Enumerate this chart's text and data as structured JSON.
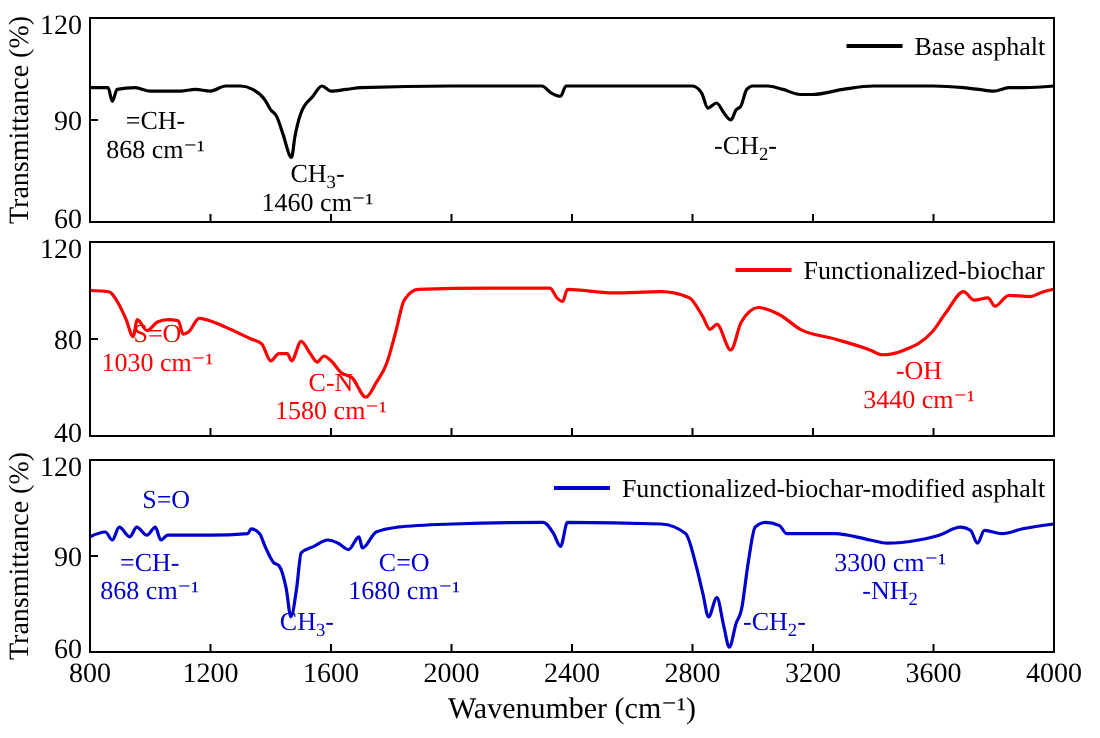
{
  "chart_data": [
    {
      "type": "line",
      "ylabel": "Transmittance (%)",
      "xlim": [
        800,
        4000
      ],
      "xticks": [
        800,
        1200,
        1600,
        2000,
        2400,
        2800,
        3200,
        3600,
        4000
      ],
      "ylim": [
        60,
        120
      ],
      "yticks": [
        60,
        90,
        120
      ],
      "tick_labels": "y",
      "legend": "top right",
      "series": [
        {
          "name": "Base asphalt",
          "color": "#000000",
          "x": [
            800,
            860,
            874,
            890,
            950,
            1000,
            1100,
            1150,
            1200,
            1250,
            1300,
            1340,
            1380,
            1400,
            1420,
            1440,
            1469,
            1480,
            1500,
            1540,
            1570,
            1600,
            1650,
            1700,
            2000,
            2300,
            2330,
            2362,
            2380,
            2500,
            2800,
            2830,
            2851,
            2880,
            2905,
            2927,
            2945,
            2960,
            2980,
            3000,
            3050,
            3100,
            3158,
            3200,
            3300,
            3400,
            3600,
            3700,
            3750,
            3800,
            3850,
            3900,
            4000
          ],
          "values": [
            99.5,
            99.5,
            95.5,
            99,
            99.5,
            98.5,
            98.5,
            99,
            98.5,
            100,
            100,
            99,
            96,
            93,
            91,
            86,
            79,
            85,
            92,
            97,
            100,
            98.5,
            99,
            99.5,
            100,
            100,
            98,
            97,
            100,
            100,
            100,
            98,
            93.5,
            95,
            92,
            90,
            93,
            94,
            99,
            100,
            100,
            99,
            97.5,
            97.5,
            99,
            100,
            100,
            99.5,
            99,
            98.5,
            99.5,
            99.5,
            100
          ]
        }
      ],
      "annotations": [
        "=CH-\n868 cm⁻¹",
        "CH$_{3}$-\n1460 cm⁻¹",
        "-CH$_{2}$-"
      ]
    },
    {
      "type": "line",
      "xlim": [
        800,
        4000
      ],
      "xticks": [
        800,
        1200,
        1600,
        2000,
        2400,
        2800,
        3200,
        3600,
        4000
      ],
      "ylim": [
        40,
        120
      ],
      "yticks": [
        40,
        80,
        120
      ],
      "tick_labels": "y",
      "legend": "top right",
      "series": [
        {
          "name": "Functionalized-biochar",
          "color": "#ff0000",
          "x": [
            800,
            862,
            897,
            920,
            943,
            957,
            989,
            1024,
            1058,
            1093,
            1109,
            1128,
            1162,
            1220,
            1266,
            1335,
            1370,
            1400,
            1427,
            1455,
            1469,
            1501,
            1531,
            1554,
            1577,
            1600,
            1635,
            1670,
            1716,
            1750,
            1785,
            1815,
            1843,
            1889,
            2120,
            2327,
            2350,
            2369,
            2385,
            2535,
            2696,
            2789,
            2835,
            2858,
            2881,
            2927,
            2962,
            3019,
            3089,
            3158,
            3273,
            3389,
            3430,
            3504,
            3596,
            3642,
            3700,
            3735,
            3781,
            3804,
            3850,
            3920,
            3965,
            4000
          ],
          "values": [
            100,
            99.5,
            94,
            88,
            81,
            88,
            83.5,
            87,
            88,
            87.5,
            82,
            83,
            88.5,
            86.5,
            84,
            80,
            78,
            71,
            74,
            74,
            71,
            79,
            74,
            70.5,
            73,
            71,
            66,
            64,
            56,
            62,
            70,
            83,
            96,
            100.5,
            101,
            101,
            97,
            95.5,
            100.5,
            99,
            99.5,
            97,
            89,
            84,
            86,
            75.5,
            87,
            93,
            90,
            84,
            80,
            75.5,
            73.5,
            75.5,
            83,
            91,
            99.5,
            96,
            97,
            93.5,
            98,
            97.5,
            99.5,
            100.5
          ]
        }
      ],
      "annotations": [
        "S=O\n1030 cm⁻¹",
        "C-N\n1580 cm⁻¹",
        "-OH\n3440 cm⁻¹"
      ]
    },
    {
      "type": "line",
      "xlabel": "Wavenumber (cm⁻¹)",
      "ylabel": "Transmittance (%)",
      "xlim": [
        800,
        4000
      ],
      "xticks": [
        800,
        1200,
        1600,
        2000,
        2400,
        2800,
        3200,
        3600,
        4000
      ],
      "ylim": [
        60,
        120
      ],
      "yticks": [
        60,
        90,
        120
      ],
      "legend": "top right",
      "series": [
        {
          "name": "Functionalized-biochar-modified asphalt",
          "color": "#0000cc",
          "x": [
            800,
            851,
            874,
            897,
            932,
            955,
            989,
            1017,
            1035,
            1058,
            1197,
            1324,
            1335,
            1363,
            1381,
            1409,
            1427,
            1451,
            1467,
            1486,
            1501,
            1543,
            1589,
            1624,
            1658,
            1693,
            1704,
            1750,
            1820,
            2004,
            2304,
            2339,
            2362,
            2385,
            2696,
            2777,
            2812,
            2835,
            2853,
            2881,
            2904,
            2922,
            2945,
            2962,
            2985,
            3008,
            3042,
            3089,
            3112,
            3273,
            3389,
            3446,
            3550,
            3619,
            3689,
            3723,
            3746,
            3769,
            3827,
            3896,
            4000
          ],
          "values": [
            96,
            97.5,
            95,
            99,
            96,
            99,
            96.5,
            99,
            95,
            96.5,
            96.5,
            97,
            98.5,
            97,
            93,
            88,
            87,
            80,
            71,
            80,
            91,
            93,
            95,
            94,
            92,
            96,
            92.5,
            97.5,
            99,
            100,
            100.5,
            97,
            93,
            100.5,
            100,
            97,
            87,
            78,
            71,
            77,
            68,
            61.5,
            69,
            73,
            88,
            99,
            100.5,
            99.5,
            97,
            97,
            95,
            94,
            95,
            96.5,
            99,
            98,
            94,
            98,
            97,
            98.5,
            100
          ]
        }
      ],
      "annotations": [
        "S=O",
        "=CH-\n868 cm⁻¹",
        "C=O\n1680 cm⁻¹",
        "CH$_{3}$-",
        "-CH$_{2}$-",
        "3300 cm⁻¹\n-NH$_{2}$"
      ]
    }
  ]
}
